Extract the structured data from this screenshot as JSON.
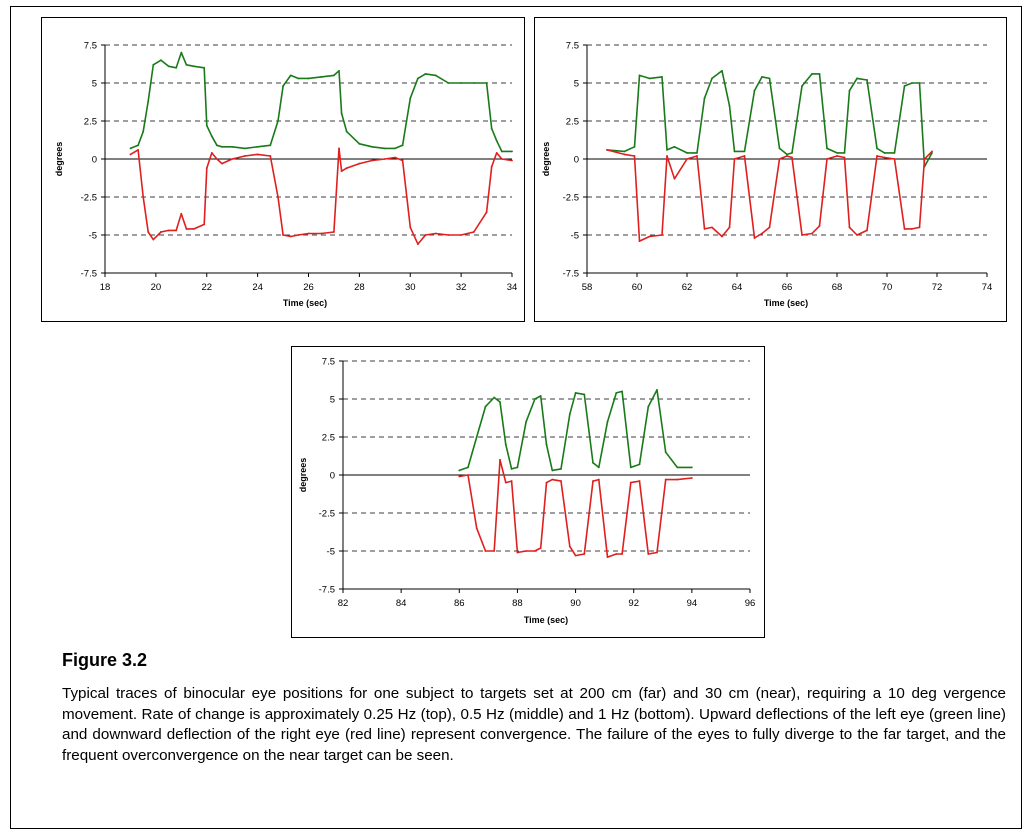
{
  "figure": {
    "title": "Figure 3.2",
    "caption": "Typical traces of binocular eye positions for one subject to targets set at 200 cm (far) and 30 cm (near), requiring a 10 deg vergence movement. Rate of change is approximately 0.25 Hz (top), 0.5 Hz (middle) and 1 Hz (bottom). Upward deflections of the left eye (green line) and downward deflection of the right eye (red line) represent convergence. The failure of the eyes to fully diverge to the far target, and the frequent overconvergence on the near target can be seen."
  },
  "colors": {
    "left_eye": "#1a7a1a",
    "right_eye": "#e01f1f",
    "axis": "#000000",
    "grid": "#000000"
  },
  "chart_data": [
    {
      "type": "line",
      "xlabel": "Time (sec)",
      "ylabel": "degrees",
      "xlim": [
        18,
        34
      ],
      "ylim": [
        -7.5,
        7.5
      ],
      "xticks": [
        18,
        20,
        22,
        24,
        26,
        28,
        30,
        32,
        34
      ],
      "yticks": [
        -7.5,
        -5,
        -2.5,
        0,
        2.5,
        5,
        7.5
      ],
      "ytick_labels": [
        "-7.5",
        "-5",
        "-2.5",
        "0",
        "2.5",
        "5",
        "7.5"
      ],
      "grid": "dashed horizontal",
      "series": [
        {
          "color": "#1a7a1a",
          "x": [
            19.0,
            19.3,
            19.5,
            19.7,
            19.9,
            20.2,
            20.5,
            20.8,
            21.0,
            21.2,
            21.5,
            21.9,
            22.0,
            22.2,
            22.4,
            22.6,
            23.0,
            23.5,
            24.0,
            24.5,
            24.8,
            25.0,
            25.3,
            25.6,
            26.0,
            26.5,
            27.0,
            27.2,
            27.3,
            27.5,
            28.0,
            28.5,
            29.0,
            29.4,
            29.7,
            30.0,
            30.3,
            30.6,
            31.0,
            31.5,
            32.0,
            32.5,
            33.0,
            33.2,
            33.4,
            33.6,
            34.0
          ],
          "y": [
            0.7,
            0.9,
            1.8,
            3.8,
            6.2,
            6.5,
            6.1,
            6.0,
            7.0,
            6.2,
            6.1,
            6.0,
            2.2,
            1.5,
            0.9,
            0.8,
            0.8,
            0.7,
            0.8,
            0.9,
            2.5,
            4.8,
            5.5,
            5.3,
            5.3,
            5.4,
            5.5,
            5.8,
            3.0,
            1.8,
            1.0,
            0.8,
            0.7,
            0.7,
            0.9,
            4.0,
            5.3,
            5.6,
            5.5,
            5.0,
            5.0,
            5.0,
            5.0,
            2.0,
            1.2,
            0.5,
            0.5
          ]
        },
        {
          "color": "#e01f1f",
          "x": [
            19.0,
            19.3,
            19.5,
            19.7,
            19.9,
            20.2,
            20.5,
            20.8,
            21.0,
            21.2,
            21.5,
            21.9,
            22.0,
            22.2,
            22.4,
            22.6,
            23.0,
            23.5,
            24.0,
            24.5,
            24.8,
            25.0,
            25.3,
            25.6,
            26.0,
            26.5,
            27.0,
            27.2,
            27.3,
            27.5,
            28.0,
            28.5,
            29.0,
            29.4,
            29.7,
            30.0,
            30.3,
            30.6,
            31.0,
            31.5,
            32.0,
            32.5,
            33.0,
            33.2,
            33.4,
            33.6,
            34.0
          ],
          "y": [
            0.3,
            0.6,
            -2.5,
            -4.8,
            -5.3,
            -4.8,
            -4.7,
            -4.7,
            -3.6,
            -4.6,
            -4.6,
            -4.3,
            -0.6,
            0.4,
            0.0,
            -0.3,
            0.0,
            0.2,
            0.3,
            0.2,
            -2.5,
            -5.0,
            -5.1,
            -5.0,
            -4.9,
            -4.9,
            -4.8,
            0.7,
            -0.8,
            -0.6,
            -0.3,
            -0.1,
            0.0,
            0.1,
            -0.1,
            -4.5,
            -5.6,
            -5.0,
            -4.9,
            -5.0,
            -5.0,
            -4.8,
            -3.5,
            -0.5,
            0.4,
            0.0,
            -0.1
          ]
        }
      ]
    },
    {
      "type": "line",
      "xlabel": "Time (sec)",
      "ylabel": "degrees",
      "xlim": [
        58,
        74
      ],
      "ylim": [
        -7.5,
        7.5
      ],
      "xticks": [
        58,
        60,
        62,
        64,
        66,
        68,
        70,
        72,
        74
      ],
      "yticks": [
        -7.5,
        -5,
        -2.5,
        0,
        2.5,
        5,
        7.5
      ],
      "ytick_labels": [
        "-7.5",
        "-5",
        "-2.5",
        "0",
        "2.5",
        "5",
        "7.5"
      ],
      "grid": "dashed horizontal",
      "series": [
        {
          "color": "#1a7a1a",
          "x": [
            58.8,
            59.5,
            59.9,
            60.1,
            60.5,
            61.0,
            61.2,
            61.5,
            62.0,
            62.4,
            62.7,
            63.0,
            63.4,
            63.7,
            63.9,
            64.3,
            64.7,
            65.0,
            65.3,
            65.7,
            66.0,
            66.2,
            66.6,
            67.0,
            67.3,
            67.6,
            68.0,
            68.3,
            68.5,
            68.8,
            69.2,
            69.6,
            69.9,
            70.3,
            70.7,
            71.0,
            71.3,
            71.5,
            71.8
          ],
          "y": [
            0.6,
            0.5,
            0.8,
            5.5,
            5.3,
            5.4,
            0.6,
            0.8,
            0.4,
            0.4,
            4.0,
            5.3,
            5.8,
            3.5,
            0.5,
            0.5,
            4.5,
            5.4,
            5.3,
            0.7,
            0.3,
            0.4,
            4.8,
            5.6,
            5.6,
            0.7,
            0.4,
            0.4,
            4.5,
            5.3,
            5.2,
            0.7,
            0.4,
            0.4,
            4.8,
            5.0,
            5.0,
            -0.5,
            0.4
          ]
        },
        {
          "color": "#e01f1f",
          "x": [
            58.8,
            59.5,
            59.9,
            60.1,
            60.5,
            61.0,
            61.2,
            61.5,
            62.0,
            62.4,
            62.7,
            63.0,
            63.4,
            63.7,
            63.9,
            64.3,
            64.7,
            65.0,
            65.3,
            65.7,
            66.0,
            66.2,
            66.6,
            67.0,
            67.3,
            67.6,
            68.0,
            68.3,
            68.5,
            68.8,
            69.2,
            69.6,
            69.9,
            70.3,
            70.7,
            71.0,
            71.3,
            71.5,
            71.8
          ],
          "y": [
            0.6,
            0.3,
            0.2,
            -5.4,
            -5.1,
            -5.0,
            0.2,
            -1.3,
            0.0,
            0.2,
            -4.6,
            -4.5,
            -5.1,
            -4.5,
            0.0,
            0.2,
            -5.2,
            -4.9,
            -4.5,
            0.0,
            0.2,
            0.1,
            -5.0,
            -4.9,
            -4.4,
            0.0,
            0.2,
            0.1,
            -4.5,
            -5.0,
            -4.7,
            0.2,
            0.1,
            0.0,
            -4.6,
            -4.6,
            -4.5,
            0.0,
            0.5
          ]
        }
      ]
    },
    {
      "type": "line",
      "xlabel": "Time (sec)",
      "ylabel": "degrees",
      "xlim": [
        82,
        96
      ],
      "ylim": [
        -7.5,
        7.5
      ],
      "xticks": [
        82,
        84,
        86,
        88,
        90,
        92,
        94,
        96
      ],
      "yticks": [
        -7.5,
        -5,
        -2.5,
        0,
        2.5,
        5,
        7.5
      ],
      "ytick_labels": [
        "-7.5",
        "-5",
        "-2.5",
        "0",
        "2.5",
        "5",
        "7.5"
      ],
      "grid": "dashed horizontal",
      "series": [
        {
          "color": "#1a7a1a",
          "x": [
            86.0,
            86.3,
            86.6,
            86.9,
            87.2,
            87.4,
            87.6,
            87.8,
            88.0,
            88.3,
            88.6,
            88.8,
            89.0,
            89.2,
            89.5,
            89.8,
            90.0,
            90.3,
            90.6,
            90.8,
            91.1,
            91.4,
            91.6,
            91.9,
            92.2,
            92.5,
            92.8,
            93.1,
            93.5,
            94.0
          ],
          "y": [
            0.3,
            0.5,
            2.5,
            4.5,
            5.1,
            4.8,
            2.0,
            0.4,
            0.5,
            3.5,
            5.0,
            5.2,
            2.0,
            0.3,
            0.4,
            4.0,
            5.4,
            5.3,
            0.8,
            0.5,
            3.5,
            5.4,
            5.5,
            0.5,
            0.7,
            4.5,
            5.6,
            1.5,
            0.5,
            0.5
          ]
        },
        {
          "color": "#e01f1f",
          "x": [
            86.0,
            86.3,
            86.6,
            86.9,
            87.2,
            87.4,
            87.6,
            87.8,
            88.0,
            88.3,
            88.6,
            88.8,
            89.0,
            89.2,
            89.5,
            89.8,
            90.0,
            90.3,
            90.6,
            90.8,
            91.1,
            91.4,
            91.6,
            91.9,
            92.2,
            92.5,
            92.8,
            93.1,
            93.5,
            94.0
          ],
          "y": [
            -0.1,
            0.0,
            -3.5,
            -5.0,
            -5.0,
            1.0,
            -0.5,
            -0.4,
            -5.1,
            -5.0,
            -5.0,
            -4.8,
            -0.5,
            -0.3,
            -0.4,
            -4.7,
            -5.3,
            -5.2,
            -0.4,
            -0.3,
            -5.4,
            -5.2,
            -5.2,
            -0.5,
            -0.4,
            -5.2,
            -5.1,
            -0.3,
            -0.3,
            -0.2
          ]
        }
      ]
    }
  ]
}
